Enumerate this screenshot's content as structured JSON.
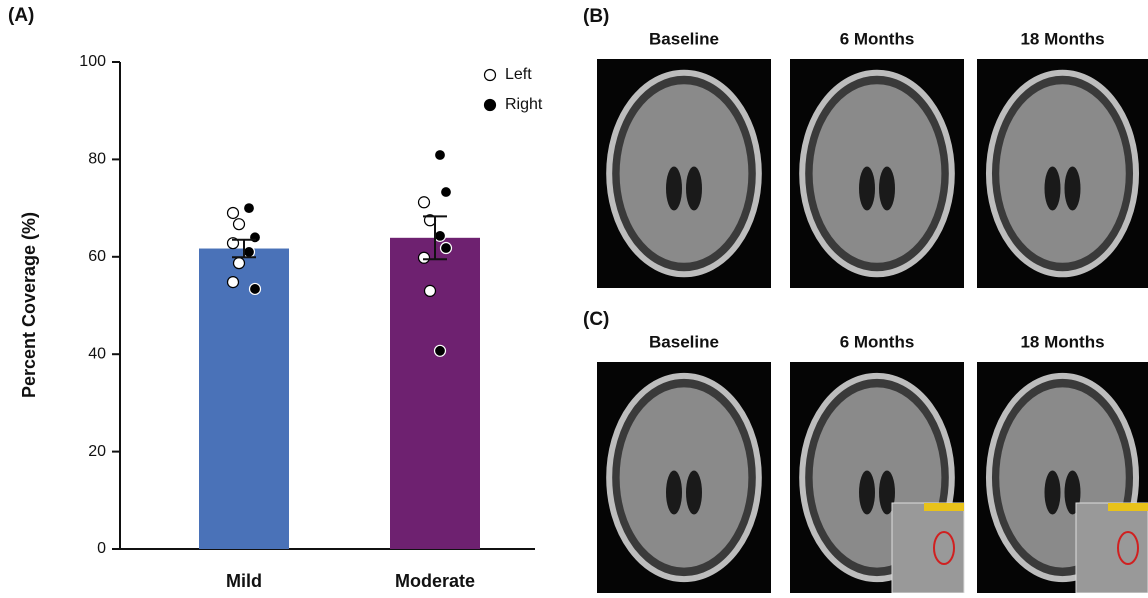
{
  "chart_data": {
    "type": "bar",
    "panel_label": "(A)",
    "ylabel": "Percent Coverage (%)",
    "categories": [
      "Mild",
      "Moderate"
    ],
    "values": [
      61.7,
      63.9
    ],
    "errors": [
      1.8,
      4.4
    ],
    "colors": [
      "#4a72b8",
      "#6e2170"
    ],
    "ylim": [
      0,
      100
    ],
    "yticks": [
      0,
      20,
      40,
      60,
      80,
      100
    ],
    "points": [
      {
        "name": "Left",
        "filled": false,
        "values": [
          [
            69,
            66.7,
            62.8,
            58.7,
            54.8
          ],
          [
            71.2,
            67.5,
            59.8,
            53
          ]
        ]
      },
      {
        "name": "Right",
        "filled": true,
        "values": [
          [
            70,
            64,
            61,
            53.4
          ],
          [
            80.9,
            73.3,
            64.3,
            61.8,
            40.7
          ]
        ]
      }
    ],
    "legend": "top-right"
  },
  "image_panels": [
    {
      "label": "(B)",
      "columns": [
        "Baseline",
        "6 Months",
        "18 Months"
      ]
    },
    {
      "label": "(C)",
      "columns": [
        "Baseline",
        "6 Months",
        "18 Months"
      ]
    }
  ]
}
